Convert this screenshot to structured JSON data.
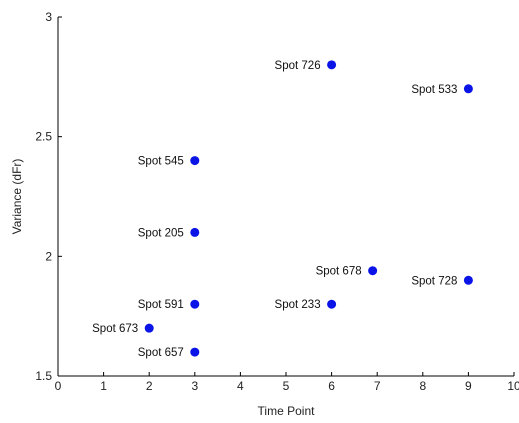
{
  "chart_data": {
    "type": "scatter",
    "title": "",
    "xlabel": "Time Point",
    "ylabel": "Variance (dFr)",
    "xlim": [
      0,
      10
    ],
    "ylim": [
      1.5,
      3
    ],
    "xticks": [
      "0",
      "1",
      "2",
      "3",
      "4",
      "5",
      "6",
      "7",
      "8",
      "9",
      "10"
    ],
    "yticks": [
      "1.5",
      "2",
      "2.5",
      "3"
    ],
    "grid": false,
    "point_color": "#0a14e6",
    "points": [
      {
        "label": "Spot 726",
        "x": 6,
        "y": 2.8
      },
      {
        "label": "Spot 533",
        "x": 9,
        "y": 2.7
      },
      {
        "label": "Spot 545",
        "x": 3,
        "y": 2.4
      },
      {
        "label": "Spot 205",
        "x": 3,
        "y": 2.1
      },
      {
        "label": "Spot 678",
        "x": 6.9,
        "y": 1.94
      },
      {
        "label": "Spot 728",
        "x": 9,
        "y": 1.9
      },
      {
        "label": "Spot 591",
        "x": 3,
        "y": 1.8
      },
      {
        "label": "Spot 233",
        "x": 6,
        "y": 1.8
      },
      {
        "label": "Spot 673",
        "x": 2,
        "y": 1.7
      },
      {
        "label": "Spot 657",
        "x": 3,
        "y": 1.6
      }
    ]
  }
}
